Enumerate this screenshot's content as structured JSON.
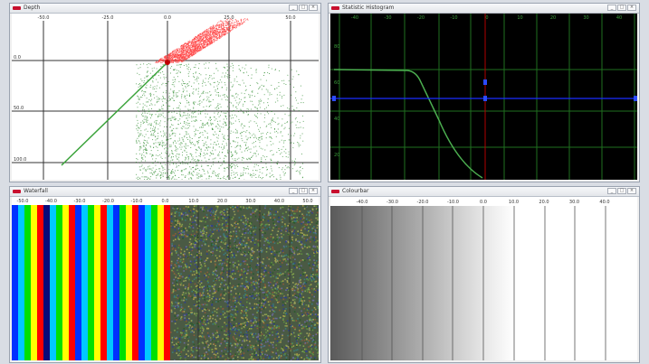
{
  "windows": {
    "depth": {
      "title": "Depth",
      "x_ticks": [
        "-50.0",
        "-25.0",
        "0.0",
        "25.0",
        "50.0"
      ],
      "y_ticks": [
        "0.0",
        "50.0",
        "100.0"
      ]
    },
    "stat": {
      "title": "Statistic Histogram",
      "x_ticks": [
        "-40",
        "-30",
        "-20",
        "-10",
        "0",
        "10",
        "20",
        "30",
        "40"
      ],
      "y_ticks": [
        "80",
        "60",
        "40",
        "20"
      ]
    },
    "waterfall": {
      "title": "Waterfall",
      "x_ticks": [
        "-50.0",
        "-40.0",
        "-30.0",
        "-20.0",
        "-10.0",
        "0.0",
        "10.0",
        "20.0",
        "30.0",
        "40.0",
        "50.0"
      ]
    },
    "colorbar": {
      "title": "Colourbar",
      "x_ticks": [
        "-40.0",
        "-30.0",
        "-20.0",
        "-10.0",
        "0.0",
        "10.0",
        "20.0",
        "30.0",
        "40.0"
      ]
    }
  },
  "controls": {
    "min": "_",
    "max": "□",
    "close": "×"
  },
  "colors": {
    "title_icon": "#c8102e",
    "plot_bg_dark": "#000000",
    "grid_green": "#2e7d32",
    "curve_green": "#4caf50",
    "marker_blue": "#1a2dff",
    "marker_red": "#b00000"
  },
  "icons": [
    "window-app-icon",
    "minimize-icon",
    "maximize-icon",
    "close-icon"
  ]
}
